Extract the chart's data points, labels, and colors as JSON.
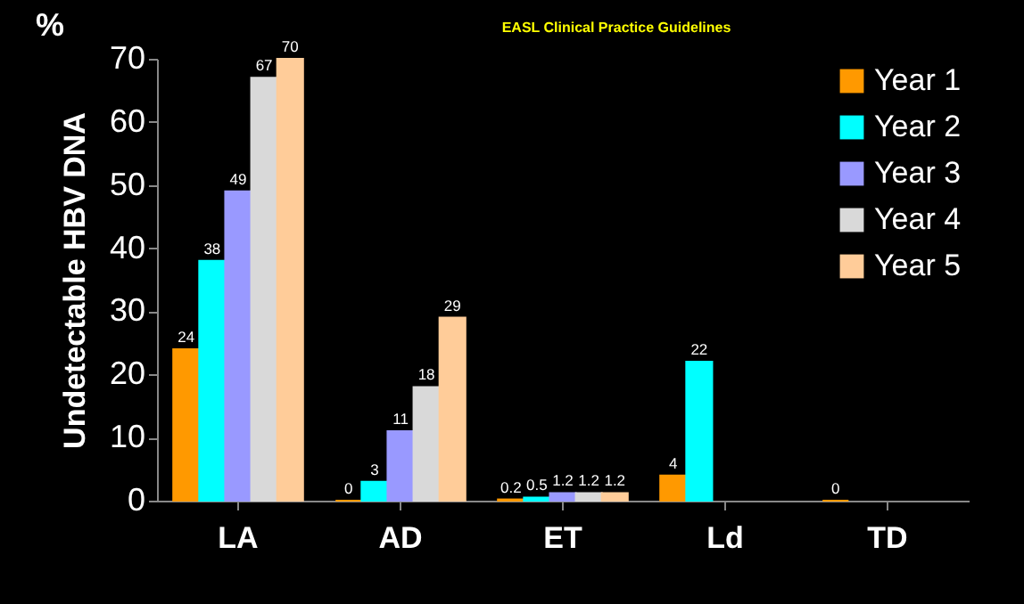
{
  "chart_data": {
    "type": "bar",
    "title": "EASL Clinical Practice Guidelines",
    "ylabel": "Undetectable HBV DNA",
    "annotations": [
      "%"
    ],
    "categories": [
      "LA",
      "AD",
      "ET",
      "Ld",
      "TD"
    ],
    "series": [
      {
        "name": "Year 1",
        "color": "#ff9900",
        "values": [
          24,
          0,
          0.2,
          4,
          0
        ]
      },
      {
        "name": "Year 2",
        "color": "#00ffff",
        "values": [
          38,
          3,
          0.5,
          22,
          null
        ]
      },
      {
        "name": "Year 3",
        "color": "#9999ff",
        "values": [
          49,
          11,
          1.2,
          null,
          null
        ]
      },
      {
        "name": "Year 4",
        "color": "#d9d9d9",
        "values": [
          67,
          18,
          1.2,
          null,
          null
        ]
      },
      {
        "name": "Year 5",
        "color": "#ffcc99",
        "values": [
          70,
          29,
          1.2,
          null,
          null
        ]
      }
    ],
    "ylim": [
      0,
      70
    ],
    "yticks": [
      0,
      10,
      20,
      30,
      40,
      50,
      60,
      70
    ],
    "data_labels": true,
    "legend": "top right"
  }
}
